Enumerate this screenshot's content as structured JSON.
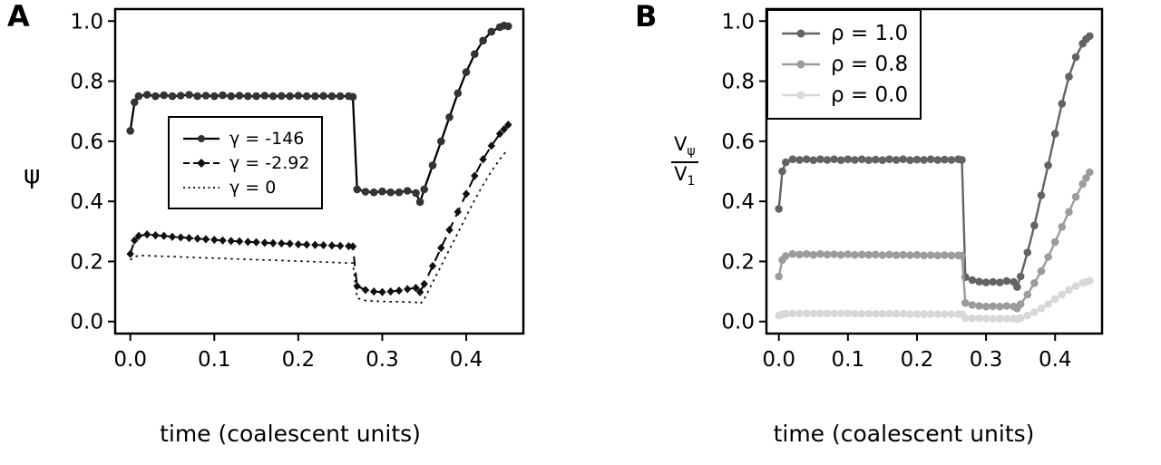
{
  "figure_caption": "",
  "chart_data": [
    {
      "type": "line",
      "panel_label": "A",
      "title": "",
      "xlabel": "time (coalescent units)",
      "ylabel": "ψ",
      "xlim": [
        -0.018,
        0.468
      ],
      "ylim": [
        -0.04,
        1.04
      ],
      "grid": false,
      "legend_position": "inside-center-left",
      "xticks": {
        "values": [
          0,
          0.1,
          0.2,
          0.3,
          0.4
        ],
        "labels": [
          "0.0",
          "0.1",
          "0.2",
          "0.3",
          "0.4"
        ]
      },
      "yticks": {
        "values": [
          0,
          0.2,
          0.4,
          0.6,
          0.8,
          1
        ],
        "labels": [
          "0.0",
          "0.2",
          "0.4",
          "0.6",
          "0.8",
          "1.0"
        ]
      },
      "series": [
        {
          "id": "gamma-146",
          "name": "γ = -146",
          "line": "solid",
          "marker": "circle",
          "color": "#000000",
          "marker_color": "#333333",
          "width": 2.3,
          "x": [
            0,
            0.005,
            0.01,
            0.02,
            0.03,
            0.04,
            0.05,
            0.06,
            0.07,
            0.08,
            0.09,
            0.1,
            0.11,
            0.12,
            0.13,
            0.14,
            0.15,
            0.16,
            0.17,
            0.18,
            0.19,
            0.2,
            0.21,
            0.22,
            0.23,
            0.24,
            0.25,
            0.26,
            0.265,
            0.27,
            0.28,
            0.29,
            0.3,
            0.31,
            0.32,
            0.33,
            0.34,
            0.345,
            0.35,
            0.36,
            0.37,
            0.38,
            0.39,
            0.4,
            0.41,
            0.42,
            0.43,
            0.44,
            0.445,
            0.45
          ],
          "y": [
            0.635,
            0.73,
            0.75,
            0.755,
            0.75,
            0.753,
            0.75,
            0.752,
            0.755,
            0.75,
            0.752,
            0.75,
            0.753,
            0.75,
            0.752,
            0.75,
            0.75,
            0.752,
            0.75,
            0.751,
            0.75,
            0.752,
            0.75,
            0.75,
            0.751,
            0.75,
            0.75,
            0.75,
            0.748,
            0.44,
            0.432,
            0.43,
            0.433,
            0.43,
            0.43,
            0.435,
            0.428,
            0.398,
            0.44,
            0.52,
            0.6,
            0.68,
            0.76,
            0.83,
            0.89,
            0.935,
            0.965,
            0.98,
            0.985,
            0.983
          ]
        },
        {
          "id": "gamma-2-92",
          "name": "γ = -2.92",
          "line": "dashed",
          "marker": "diamond",
          "color": "#000000",
          "marker_color": "#111111",
          "width": 2,
          "x": [
            0,
            0.005,
            0.01,
            0.02,
            0.03,
            0.04,
            0.05,
            0.06,
            0.07,
            0.08,
            0.09,
            0.1,
            0.11,
            0.12,
            0.13,
            0.14,
            0.15,
            0.16,
            0.17,
            0.18,
            0.19,
            0.2,
            0.21,
            0.22,
            0.23,
            0.24,
            0.25,
            0.26,
            0.265,
            0.27,
            0.28,
            0.29,
            0.3,
            0.31,
            0.32,
            0.33,
            0.34,
            0.345,
            0.35,
            0.36,
            0.37,
            0.38,
            0.39,
            0.4,
            0.41,
            0.42,
            0.43,
            0.44,
            0.445,
            0.45
          ],
          "y": [
            0.225,
            0.27,
            0.285,
            0.29,
            0.287,
            0.285,
            0.282,
            0.28,
            0.278,
            0.276,
            0.274,
            0.272,
            0.27,
            0.268,
            0.267,
            0.265,
            0.264,
            0.262,
            0.261,
            0.26,
            0.259,
            0.257,
            0.256,
            0.255,
            0.254,
            0.253,
            0.252,
            0.251,
            0.25,
            0.118,
            0.105,
            0.1,
            0.098,
            0.1,
            0.103,
            0.108,
            0.112,
            0.098,
            0.125,
            0.185,
            0.245,
            0.305,
            0.365,
            0.425,
            0.485,
            0.54,
            0.585,
            0.625,
            0.64,
            0.655
          ]
        },
        {
          "id": "gamma-0",
          "name": "γ = 0",
          "line": "dotted",
          "marker": "none",
          "color": "#000000",
          "width": 1.7,
          "x": [
            0,
            0.005,
            0.01,
            0.02,
            0.03,
            0.04,
            0.05,
            0.06,
            0.07,
            0.08,
            0.09,
            0.1,
            0.11,
            0.12,
            0.13,
            0.14,
            0.15,
            0.16,
            0.17,
            0.18,
            0.19,
            0.2,
            0.21,
            0.22,
            0.23,
            0.24,
            0.25,
            0.26,
            0.265,
            0.27,
            0.28,
            0.29,
            0.3,
            0.31,
            0.32,
            0.33,
            0.34,
            0.345,
            0.35,
            0.36,
            0.37,
            0.38,
            0.39,
            0.4,
            0.41,
            0.42,
            0.43,
            0.44,
            0.445,
            0.45
          ],
          "y": [
            0.205,
            0.215,
            0.22,
            0.219,
            0.218,
            0.217,
            0.216,
            0.215,
            0.214,
            0.213,
            0.212,
            0.211,
            0.21,
            0.209,
            0.208,
            0.207,
            0.206,
            0.205,
            0.204,
            0.203,
            0.202,
            0.201,
            0.2,
            0.199,
            0.198,
            0.197,
            0.196,
            0.195,
            0.195,
            0.078,
            0.07,
            0.068,
            0.067,
            0.066,
            0.066,
            0.065,
            0.064,
            0.058,
            0.075,
            0.13,
            0.185,
            0.24,
            0.295,
            0.35,
            0.405,
            0.455,
            0.5,
            0.54,
            0.558,
            0.572
          ]
        }
      ]
    },
    {
      "type": "line",
      "panel_label": "B",
      "title": "",
      "xlabel": "time (coalescent units)",
      "ylabel": "Vψ / V1",
      "ylabel_parts": {
        "num_base": "V",
        "num_sub": "ψ",
        "den_base": "V",
        "den_sub": "1"
      },
      "xlim": [
        -0.018,
        0.468
      ],
      "ylim": [
        -0.04,
        1.04
      ],
      "grid": false,
      "legend_position": "inside-top-left",
      "xticks": {
        "values": [
          0,
          0.1,
          0.2,
          0.3,
          0.4
        ],
        "labels": [
          "0.0",
          "0.1",
          "0.2",
          "0.3",
          "0.4"
        ]
      },
      "yticks": {
        "values": [
          0,
          0.2,
          0.4,
          0.6,
          0.8,
          1
        ],
        "labels": [
          "0.0",
          "0.2",
          "0.4",
          "0.6",
          "0.8",
          "1.0"
        ]
      },
      "series": [
        {
          "id": "rho-1-0",
          "name": "ρ = 1.0",
          "line": "solid",
          "marker": "circle",
          "color": "#636363",
          "width": 2.4,
          "x": [
            0,
            0.005,
            0.01,
            0.02,
            0.03,
            0.04,
            0.05,
            0.06,
            0.07,
            0.08,
            0.09,
            0.1,
            0.11,
            0.12,
            0.13,
            0.14,
            0.15,
            0.16,
            0.17,
            0.18,
            0.19,
            0.2,
            0.21,
            0.22,
            0.23,
            0.24,
            0.25,
            0.26,
            0.265,
            0.27,
            0.28,
            0.29,
            0.3,
            0.31,
            0.32,
            0.33,
            0.34,
            0.345,
            0.35,
            0.36,
            0.37,
            0.38,
            0.39,
            0.4,
            0.41,
            0.42,
            0.43,
            0.44,
            0.445,
            0.45
          ],
          "y": [
            0.375,
            0.5,
            0.53,
            0.54,
            0.538,
            0.54,
            0.537,
            0.54,
            0.538,
            0.54,
            0.537,
            0.54,
            0.538,
            0.54,
            0.537,
            0.539,
            0.537,
            0.54,
            0.538,
            0.54,
            0.537,
            0.539,
            0.538,
            0.54,
            0.538,
            0.539,
            0.538,
            0.54,
            0.538,
            0.148,
            0.138,
            0.133,
            0.13,
            0.132,
            0.13,
            0.135,
            0.132,
            0.115,
            0.15,
            0.23,
            0.32,
            0.42,
            0.52,
            0.625,
            0.725,
            0.815,
            0.88,
            0.925,
            0.94,
            0.95
          ]
        },
        {
          "id": "rho-0-8",
          "name": "ρ = 0.8",
          "line": "solid",
          "marker": "circle",
          "color": "#9c9c9c",
          "width": 2.4,
          "x": [
            0,
            0.005,
            0.01,
            0.02,
            0.03,
            0.04,
            0.05,
            0.06,
            0.07,
            0.08,
            0.09,
            0.1,
            0.11,
            0.12,
            0.13,
            0.14,
            0.15,
            0.16,
            0.17,
            0.18,
            0.19,
            0.2,
            0.21,
            0.22,
            0.23,
            0.24,
            0.25,
            0.26,
            0.265,
            0.27,
            0.28,
            0.29,
            0.3,
            0.31,
            0.32,
            0.33,
            0.34,
            0.345,
            0.35,
            0.36,
            0.37,
            0.38,
            0.39,
            0.4,
            0.41,
            0.42,
            0.43,
            0.44,
            0.445,
            0.45
          ],
          "y": [
            0.15,
            0.205,
            0.218,
            0.225,
            0.223,
            0.225,
            0.222,
            0.225,
            0.223,
            0.224,
            0.222,
            0.224,
            0.222,
            0.223,
            0.222,
            0.223,
            0.221,
            0.223,
            0.221,
            0.222,
            0.221,
            0.222,
            0.22,
            0.221,
            0.22,
            0.221,
            0.22,
            0.22,
            0.219,
            0.062,
            0.055,
            0.052,
            0.05,
            0.051,
            0.05,
            0.052,
            0.05,
            0.044,
            0.058,
            0.09,
            0.128,
            0.168,
            0.215,
            0.265,
            0.315,
            0.365,
            0.415,
            0.458,
            0.478,
            0.497
          ]
        },
        {
          "id": "rho-0-0",
          "name": "ρ = 0.0",
          "line": "solid",
          "marker": "circle",
          "color": "#d8d8d8",
          "width": 2.4,
          "x": [
            0,
            0.005,
            0.01,
            0.02,
            0.03,
            0.04,
            0.05,
            0.06,
            0.07,
            0.08,
            0.09,
            0.1,
            0.11,
            0.12,
            0.13,
            0.14,
            0.15,
            0.16,
            0.17,
            0.18,
            0.19,
            0.2,
            0.21,
            0.22,
            0.23,
            0.24,
            0.25,
            0.26,
            0.265,
            0.27,
            0.28,
            0.29,
            0.3,
            0.31,
            0.32,
            0.33,
            0.34,
            0.345,
            0.35,
            0.36,
            0.37,
            0.38,
            0.39,
            0.4,
            0.41,
            0.42,
            0.43,
            0.44,
            0.445,
            0.45
          ],
          "y": [
            0.02,
            0.024,
            0.026,
            0.027,
            0.027,
            0.027,
            0.027,
            0.027,
            0.027,
            0.027,
            0.027,
            0.027,
            0.026,
            0.026,
            0.026,
            0.026,
            0.026,
            0.026,
            0.026,
            0.026,
            0.025,
            0.025,
            0.025,
            0.025,
            0.025,
            0.025,
            0.025,
            0.025,
            0.025,
            0.012,
            0.011,
            0.011,
            0.01,
            0.01,
            0.01,
            0.01,
            0.01,
            0.008,
            0.012,
            0.02,
            0.031,
            0.044,
            0.058,
            0.075,
            0.09,
            0.105,
            0.118,
            0.128,
            0.132,
            0.136
          ]
        }
      ]
    }
  ]
}
